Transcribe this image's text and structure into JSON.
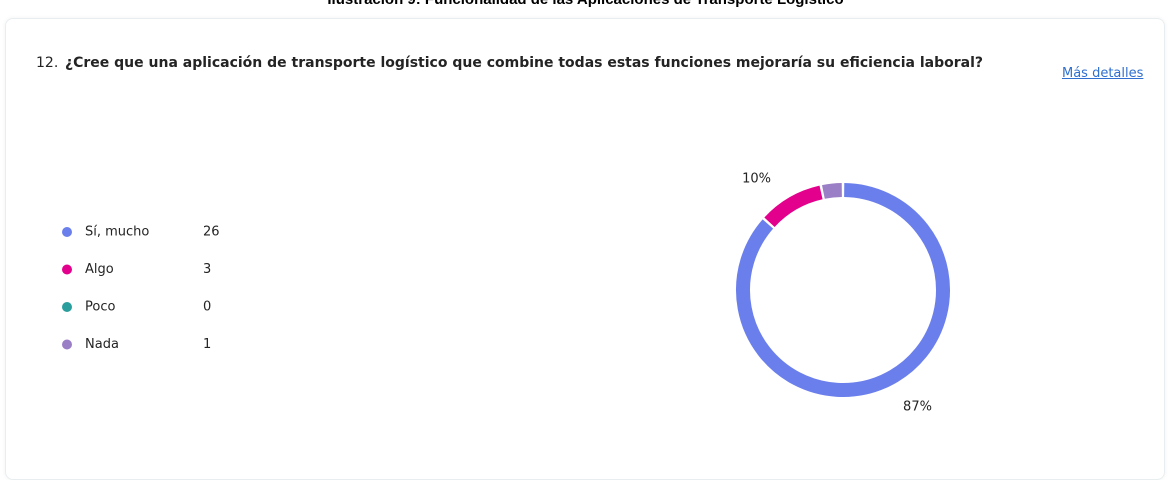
{
  "caption": "Ilustración 9: Funcionalidad de las Aplicaciones de Transporte Logístico",
  "question": {
    "number": "12.",
    "text": "¿Cree que una aplicación de transporte logístico que combine todas estas funciones mejoraría su eficiencia laboral?",
    "link": "Más detalles"
  },
  "chart_data": {
    "type": "pie",
    "donut": true,
    "categories": [
      "Sí, mucho",
      "Algo",
      "Poco",
      "Nada"
    ],
    "values": [
      26,
      3,
      0,
      1
    ],
    "colors": [
      "#6b7fec",
      "#e3008c",
      "#2a9d9d",
      "#9b7fc6"
    ],
    "slice_labels": [
      "87%",
      "10%",
      null,
      null
    ]
  }
}
